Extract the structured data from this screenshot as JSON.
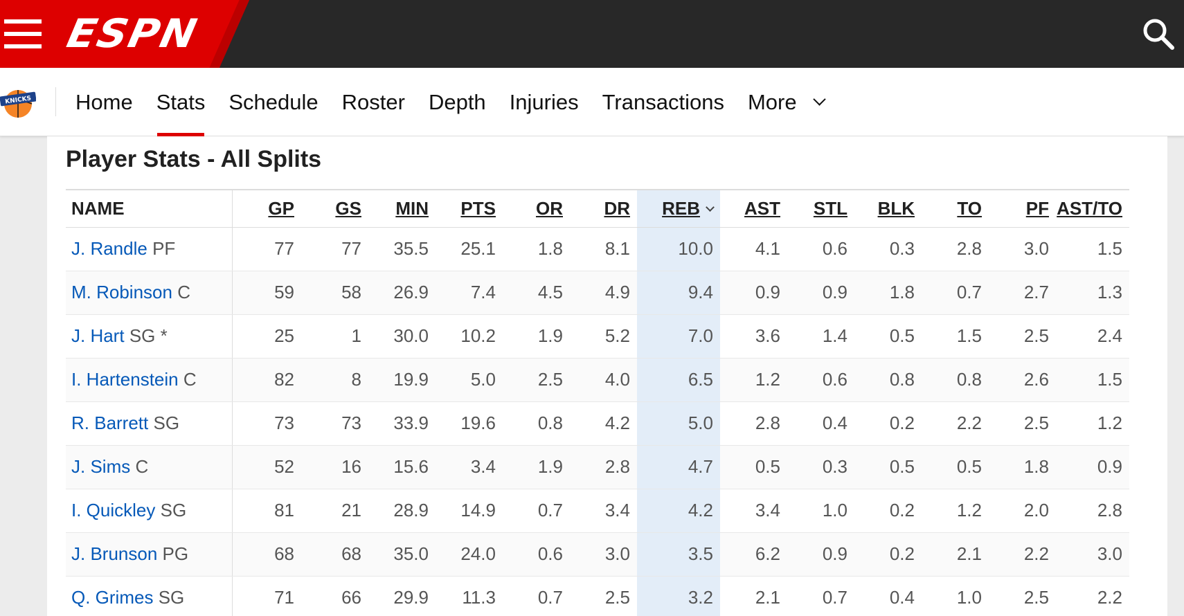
{
  "header": {
    "logo_text": "ESPN",
    "menu_icon": "hamburger-menu-icon",
    "search_icon": "search-icon"
  },
  "team_nav": {
    "team_logo": "new-york-knicks-logo",
    "links": [
      {
        "label": "Home"
      },
      {
        "label": "Stats",
        "active": true
      },
      {
        "label": "Schedule"
      },
      {
        "label": "Roster"
      },
      {
        "label": "Depth"
      },
      {
        "label": "Injuries"
      },
      {
        "label": "Transactions"
      },
      {
        "label": "More",
        "dropdown": true
      }
    ]
  },
  "section": {
    "title": "Player Stats - All Splits"
  },
  "table": {
    "name_header": "NAME",
    "sorted_column": "REB",
    "columns": [
      "GP",
      "GS",
      "MIN",
      "PTS",
      "OR",
      "DR",
      "REB",
      "AST",
      "STL",
      "BLK",
      "TO",
      "PF",
      "AST/TO"
    ],
    "rows": [
      {
        "player": "J. Randle",
        "pos": "PF",
        "values": [
          "77",
          "77",
          "35.5",
          "25.1",
          "1.8",
          "8.1",
          "10.0",
          "4.1",
          "0.6",
          "0.3",
          "2.8",
          "3.0",
          "1.5"
        ]
      },
      {
        "player": "M. Robinson",
        "pos": "C",
        "values": [
          "59",
          "58",
          "26.9",
          "7.4",
          "4.5",
          "4.9",
          "9.4",
          "0.9",
          "0.9",
          "1.8",
          "0.7",
          "2.7",
          "1.3"
        ]
      },
      {
        "player": "J. Hart",
        "pos": "SG *",
        "values": [
          "25",
          "1",
          "30.0",
          "10.2",
          "1.9",
          "5.2",
          "7.0",
          "3.6",
          "1.4",
          "0.5",
          "1.5",
          "2.5",
          "2.4"
        ]
      },
      {
        "player": "I. Hartenstein",
        "pos": "C",
        "values": [
          "82",
          "8",
          "19.9",
          "5.0",
          "2.5",
          "4.0",
          "6.5",
          "1.2",
          "0.6",
          "0.8",
          "0.8",
          "2.6",
          "1.5"
        ]
      },
      {
        "player": "R. Barrett",
        "pos": "SG",
        "values": [
          "73",
          "73",
          "33.9",
          "19.6",
          "0.8",
          "4.2",
          "5.0",
          "2.8",
          "0.4",
          "0.2",
          "2.2",
          "2.5",
          "1.2"
        ]
      },
      {
        "player": "J. Sims",
        "pos": "C",
        "values": [
          "52",
          "16",
          "15.6",
          "3.4",
          "1.9",
          "2.8",
          "4.7",
          "0.5",
          "0.3",
          "0.5",
          "0.5",
          "1.8",
          "0.9"
        ]
      },
      {
        "player": "I. Quickley",
        "pos": "SG",
        "values": [
          "81",
          "21",
          "28.9",
          "14.9",
          "0.7",
          "3.4",
          "4.2",
          "3.4",
          "1.0",
          "0.2",
          "1.2",
          "2.0",
          "2.8"
        ]
      },
      {
        "player": "J. Brunson",
        "pos": "PG",
        "values": [
          "68",
          "68",
          "35.0",
          "24.0",
          "0.6",
          "3.0",
          "3.5",
          "6.2",
          "0.9",
          "0.2",
          "2.1",
          "2.2",
          "3.0"
        ]
      },
      {
        "player": "Q. Grimes",
        "pos": "SG",
        "values": [
          "71",
          "66",
          "29.9",
          "11.3",
          "0.7",
          "2.5",
          "3.2",
          "2.1",
          "0.7",
          "0.4",
          "1.0",
          "2.5",
          "2.2"
        ]
      }
    ]
  },
  "colors": {
    "brand_red": "#dd0000",
    "topbar": "#282828",
    "link_blue": "#0659b8",
    "sorted_col_bg": "#e3edf8"
  }
}
